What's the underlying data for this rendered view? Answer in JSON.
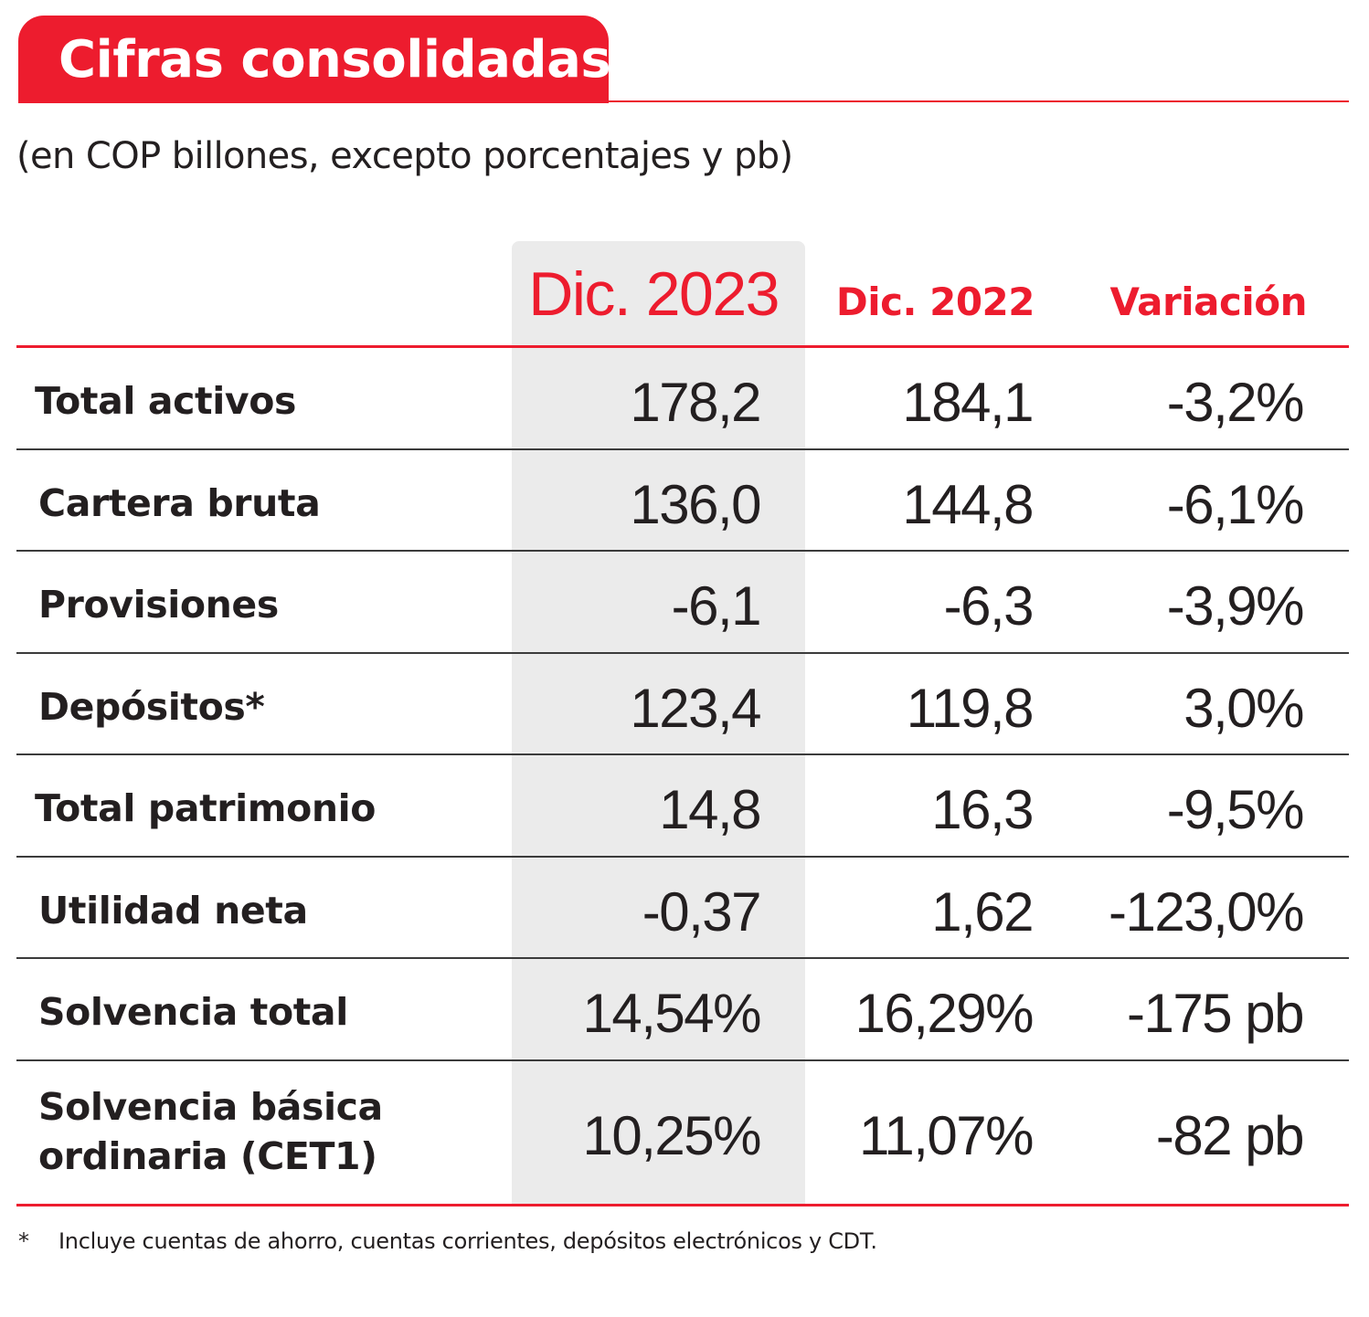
{
  "title": "Cifras consolidadas",
  "subtitle": "(en COP billones, excepto porcentajes y pb)",
  "colors": {
    "accent": "#ed1c2e",
    "highlight_column": "#ebebeb",
    "text": "#231f20"
  },
  "table": {
    "headers": [
      "Dic. 2023",
      "Dic. 2022",
      "Variación"
    ],
    "rows": [
      {
        "label": "Total activos",
        "dic2023": "178,2",
        "dic2022": "184,1",
        "variacion": "-3,2%"
      },
      {
        "label": "Cartera bruta",
        "dic2023": "136,0",
        "dic2022": "144,8",
        "variacion": "-6,1%"
      },
      {
        "label": "Provisiones",
        "dic2023": "-6,1",
        "dic2022": "-6,3",
        "variacion": "-3,9%"
      },
      {
        "label": "Depósitos*",
        "dic2023": "123,4",
        "dic2022": "119,8",
        "variacion": "3,0%"
      },
      {
        "label": "Total patrimonio",
        "dic2023": "14,8",
        "dic2022": "16,3",
        "variacion": "-9,5%"
      },
      {
        "label": "Utilidad neta",
        "dic2023": "-0,37",
        "dic2022": "1,62",
        "variacion": "-123,0%"
      },
      {
        "label": "Solvencia total",
        "dic2023": "14,54%",
        "dic2022": "16,29%",
        "variacion": "-175 pb"
      },
      {
        "label_line1": "Solvencia básica",
        "label_line2": "ordinaria (CET1)",
        "dic2023": "10,25%",
        "dic2022": "11,07%",
        "variacion": "-82 pb"
      }
    ]
  },
  "footnote": {
    "mark": "*",
    "text": "Incluye cuentas de ahorro, cuentas corrientes, depósitos electrónicos y CDT."
  }
}
